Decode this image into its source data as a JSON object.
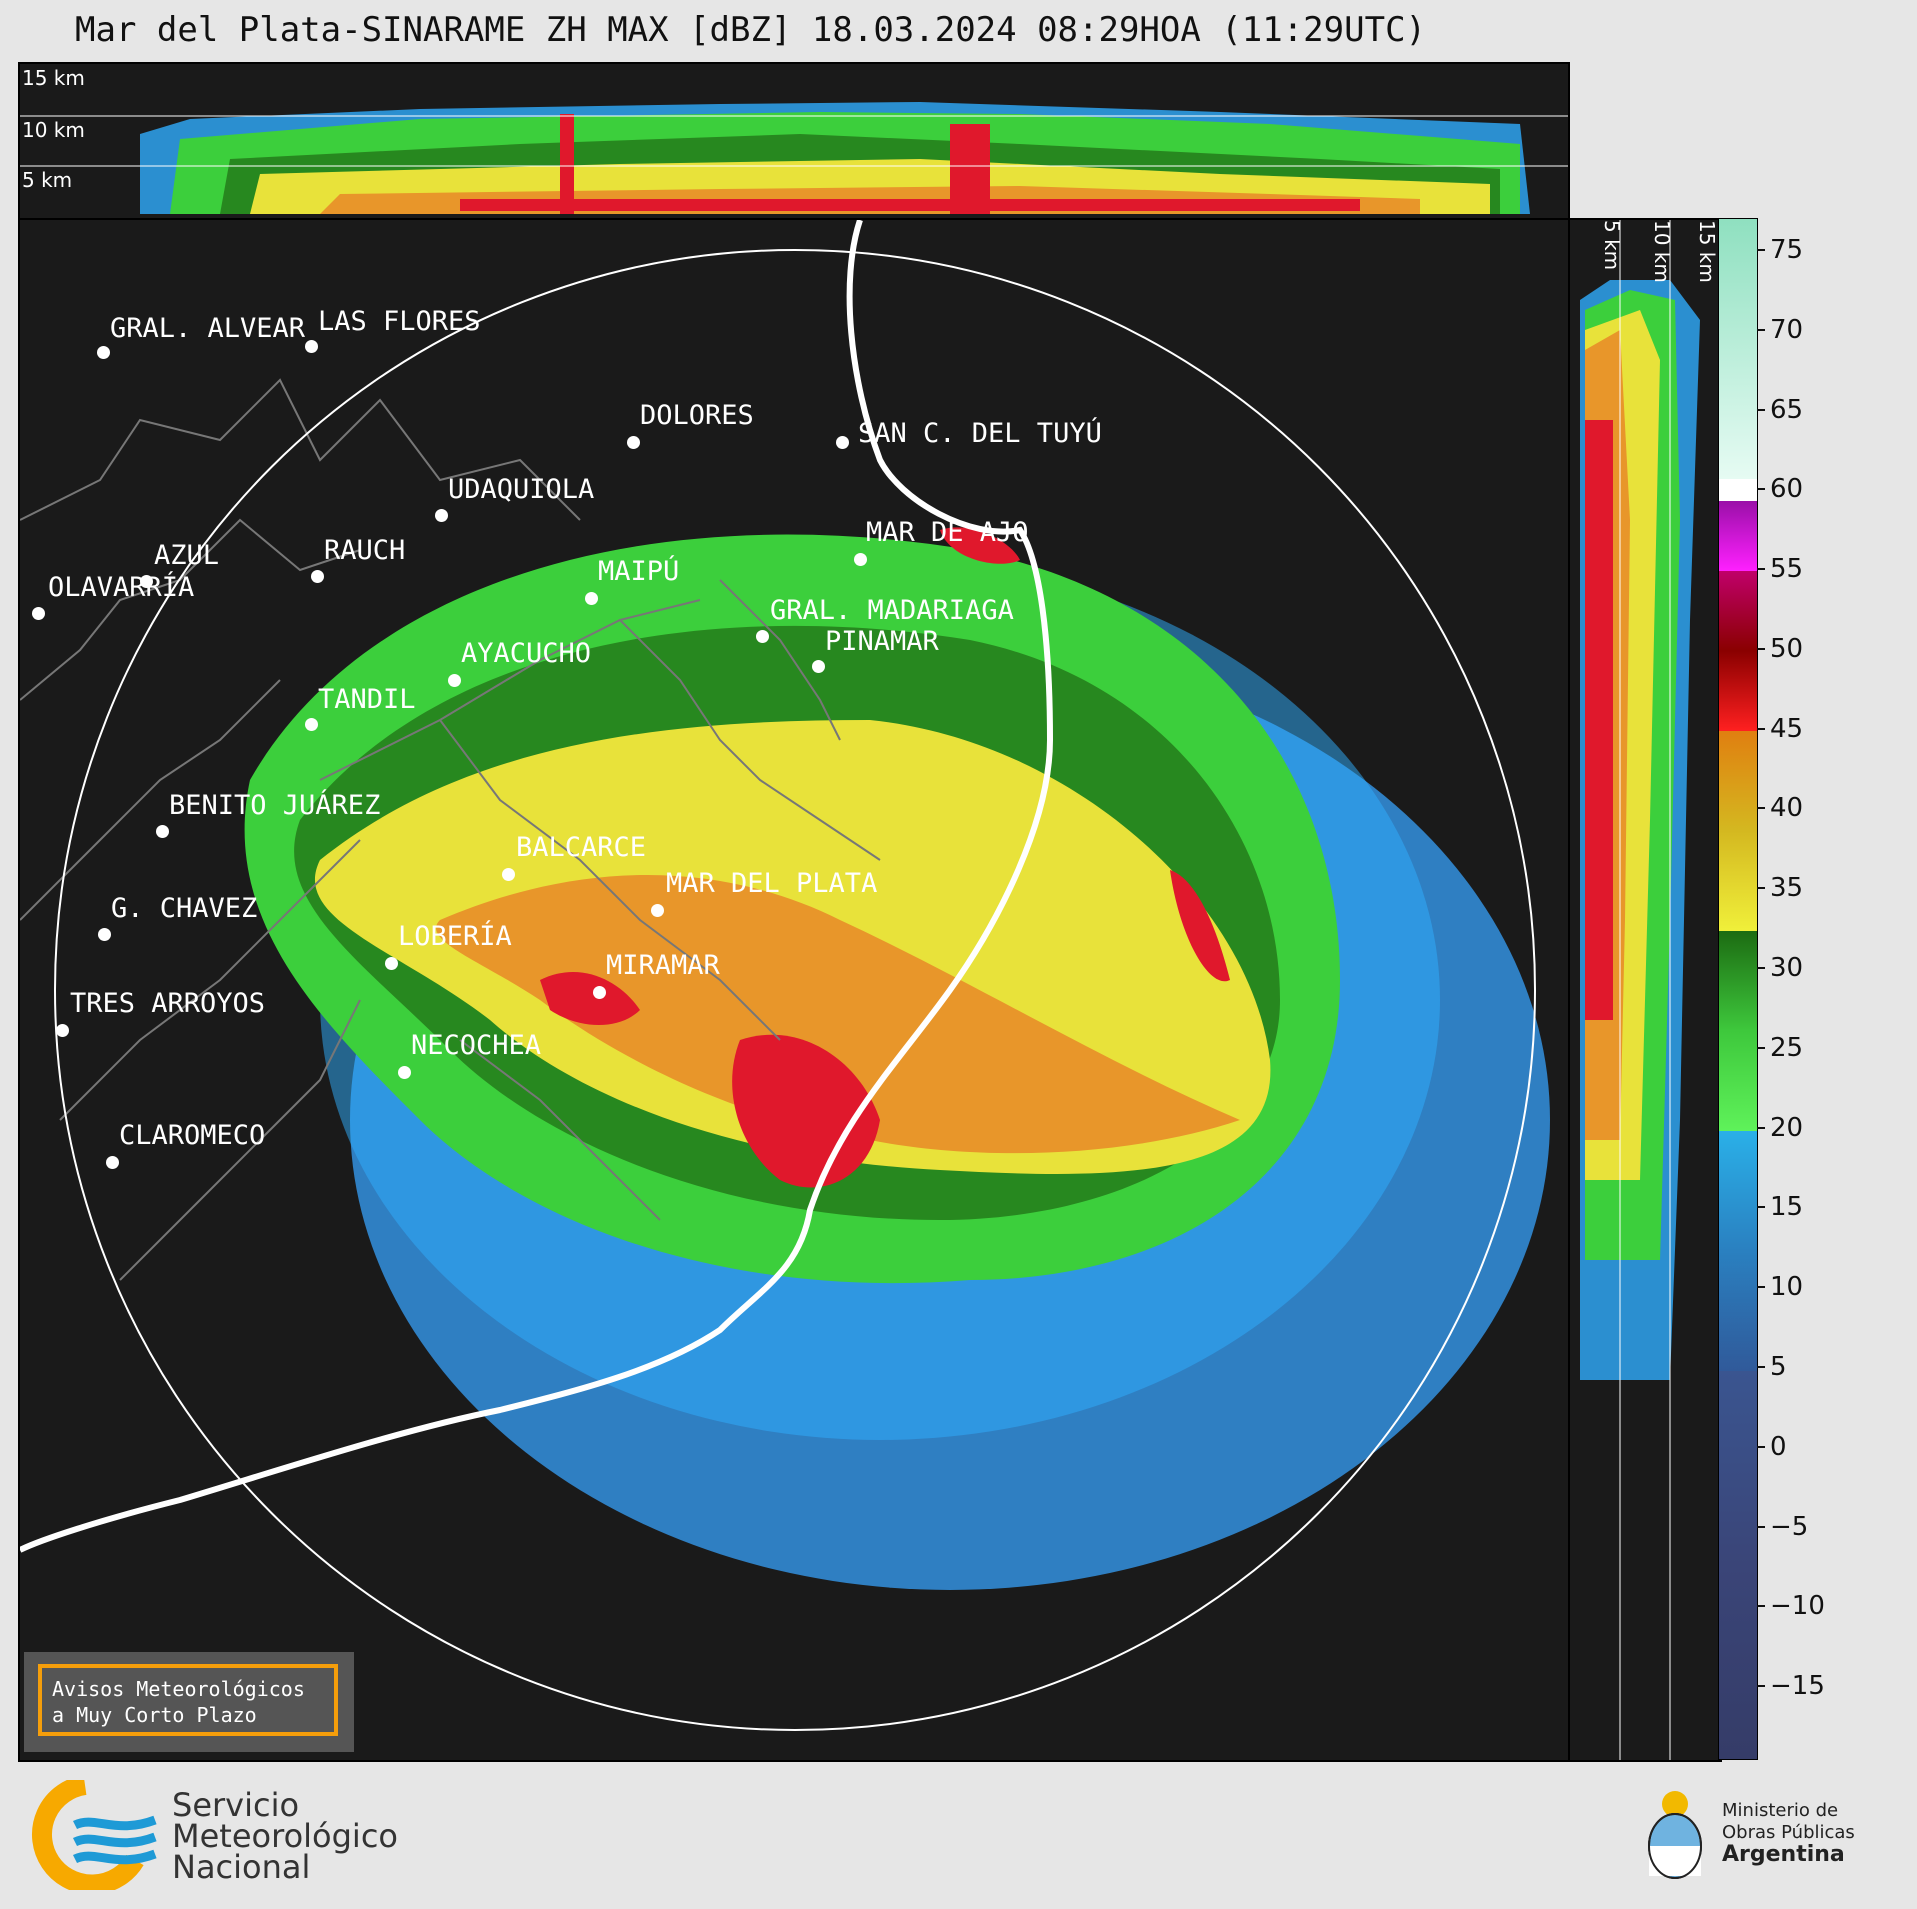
{
  "title": "Mar del Plata-SINARAME ZH MAX [dBZ] 18.03.2024 08:29HOA (11:29UTC)",
  "top_panel": {
    "height_labels": [
      "15 km",
      "10 km",
      "5 km"
    ]
  },
  "right_panel": {
    "height_labels": [
      "5 km",
      "10 km",
      "15 km"
    ]
  },
  "cities": [
    {
      "name": "GRAL. ALVEAR"
    },
    {
      "name": "LAS FLORES"
    },
    {
      "name": "DOLORES"
    },
    {
      "name": "SAN C. DEL TUYÚ"
    },
    {
      "name": "UDAQUIOLA"
    },
    {
      "name": "MAR DE AJO"
    },
    {
      "name": "AZUL"
    },
    {
      "name": "RAUCH"
    },
    {
      "name": "MAIPÚ"
    },
    {
      "name": "OLAVARRÍA"
    },
    {
      "name": "GRAL. MADARIAGA"
    },
    {
      "name": "PINAMAR"
    },
    {
      "name": "AYACUCHO"
    },
    {
      "name": "TANDIL"
    },
    {
      "name": "BENITO JUÁREZ"
    },
    {
      "name": "BALCARCE"
    },
    {
      "name": "MAR DEL PLATA"
    },
    {
      "name": "G. CHAVEZ"
    },
    {
      "name": "LOBERÍA"
    },
    {
      "name": "MIRAMAR"
    },
    {
      "name": "TRES ARROYOS"
    },
    {
      "name": "NECOCHEA"
    },
    {
      "name": "CLAROMECO"
    }
  ],
  "colorbar": {
    "unit": "dBZ",
    "ticks": [
      "75",
      "70",
      "65",
      "60",
      "55",
      "50",
      "45",
      "40",
      "35",
      "30",
      "25",
      "20",
      "15",
      "10",
      "5",
      "0",
      "−5",
      "−10",
      "−15"
    ]
  },
  "avisos": {
    "line1": "Avisos Meteorológicos",
    "line2": "a Muy Corto Plazo"
  },
  "logos": {
    "smn": {
      "line1": "Servicio",
      "line2": "Meteorológico",
      "line3": "Nacional"
    },
    "ministerio": {
      "line1": "Ministerio de",
      "line2": "Obras Públicas",
      "line3": "Argentina"
    }
  }
}
